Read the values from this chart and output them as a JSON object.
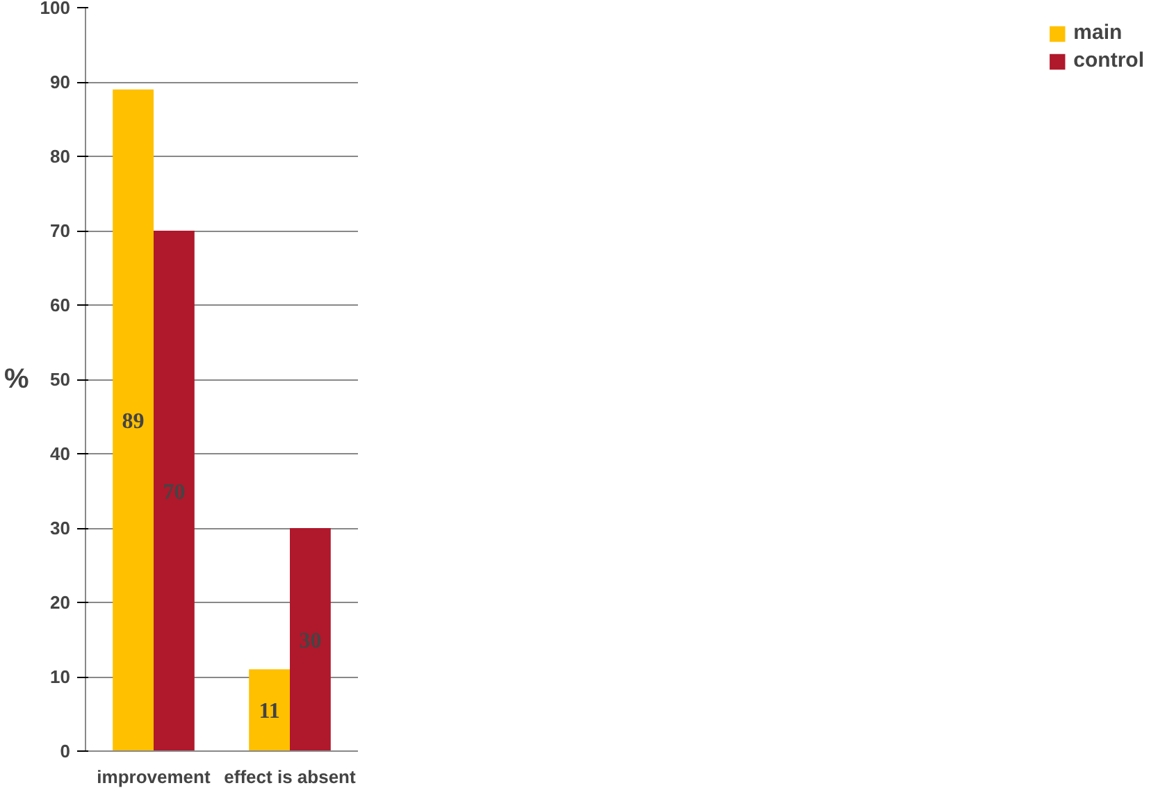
{
  "chart_data": {
    "type": "bar",
    "categories": [
      "improvement",
      "effect is absent"
    ],
    "ylabel": "%",
    "series": [
      {
        "name": "main",
        "color": "#ffc000",
        "values": [
          89,
          11
        ]
      },
      {
        "name": "control",
        "color": "#b0182c",
        "values": [
          70,
          30
        ]
      }
    ],
    "ylim": [
      0,
      100
    ],
    "yticks": [
      0,
      10,
      20,
      30,
      40,
      50,
      60,
      70,
      80,
      90,
      100
    ],
    "grid": "y",
    "legend": "right",
    "data_labels": true
  }
}
